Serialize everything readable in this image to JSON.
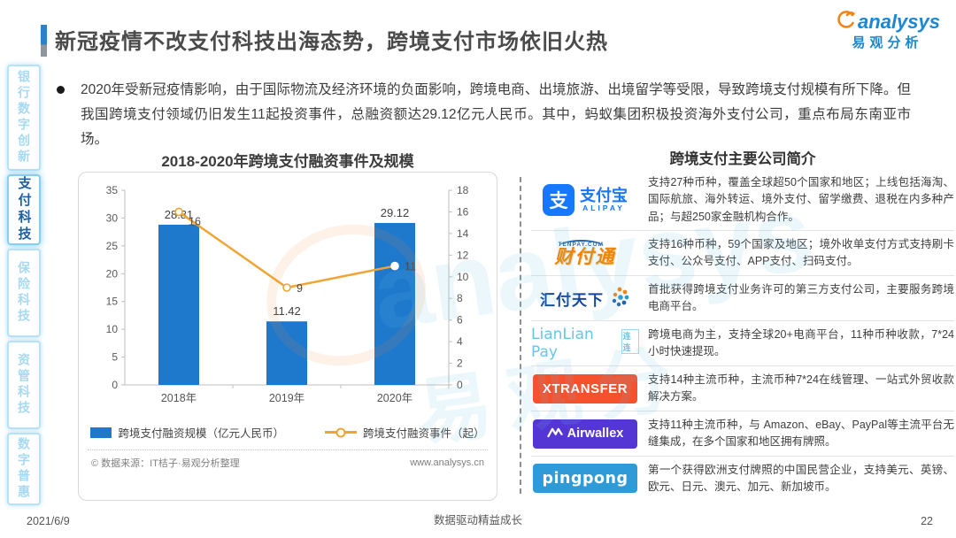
{
  "header": {
    "title": "新冠疫情不改支付科技出海态势，跨境支付市场依旧火热",
    "brand": {
      "name": "analysys",
      "cn": "易观分析"
    }
  },
  "sidebar": {
    "items": [
      {
        "label": "银行数字创新",
        "active": false
      },
      {
        "label": "支付科技",
        "active": true
      },
      {
        "label": "保险科技",
        "active": false
      },
      {
        "label": "资管科技",
        "active": false
      },
      {
        "label": "数字普惠",
        "active": false
      }
    ]
  },
  "summary": {
    "text": "2020年受新冠疫情影响，由于国际物流及经济环境的负面影响，跨境电商、出境旅游、出境留学等受限，导致跨境支付规模有所下降。但我国跨境支付领域仍旧发生11起投资事件，总融资额达29.12亿元人民币。其中，蚂蚁集团积极投资海外支付公司，重点布局东南亚市场。"
  },
  "chart_data": {
    "type": "bar",
    "title": "2018-2020年跨境支付融资事件及规模",
    "categories": [
      "2018年",
      "2019年",
      "2020年"
    ],
    "series": [
      {
        "name": "跨境支付融资规模（亿元人民币）",
        "type": "bar",
        "axis": "left",
        "values": [
          28.81,
          11.42,
          29.12
        ],
        "color": "#1e78cc"
      },
      {
        "name": "跨境支付融资事件（起）",
        "type": "line",
        "axis": "right",
        "values": [
          16,
          9,
          11
        ],
        "color": "#f0a432"
      }
    ],
    "left_axis": {
      "min": 0,
      "max": 35,
      "step": 5
    },
    "right_axis": {
      "min": 0,
      "max": 18,
      "step": 2
    },
    "legend_position": "bottom",
    "grid": false,
    "source_left": "© 数据来源：IT桔子·易观分析整理",
    "source_right": "www.analysys.cn"
  },
  "companies": {
    "title": "跨境支付主要公司简介",
    "rows": [
      {
        "name": "支付宝",
        "logo": {
          "badge": "支",
          "text": "支付宝",
          "sub": "ALIPAY",
          "color": "#1677ff"
        },
        "desc": "支持27种币种，覆盖全球超50个国家和地区；上线包括海淘、国际航旅、海外转运、境外支付、留学缴费、退税在内多种产品；与超250家金融机构合作。"
      },
      {
        "name": "财付通",
        "logo": {
          "text": "财付通",
          "sub": "TENPAY.COM",
          "color": "#f08300"
        },
        "desc": "支持16种币种，59个国家及地区；境外收单支付方式支持刷卡支付、公众号支付、APP支付、扫码支付。"
      },
      {
        "name": "汇付天下",
        "logo": {
          "text": "汇付天下",
          "color": "#14459c"
        },
        "desc": "首批获得跨境支付业务许可的第三方支付公司，主要服务跨境电商平台。"
      },
      {
        "name": "LianLian Pay",
        "logo": {
          "text": "LianLian Pay",
          "sub": "连连",
          "color": "#66c5ea"
        },
        "desc": "跨境电商为主，支持全球20+电商平台，11种币种收款，7*24 小时快速提现。"
      },
      {
        "name": "XTRANSFER",
        "logo": {
          "text": "XTRANSFER",
          "color": "#f4512c"
        },
        "desc": "支持14种主流币种，主流币种7*24在线管理、一站式外贸收款解决方案。"
      },
      {
        "name": "Airwallex",
        "logo": {
          "text": "Airwallex",
          "color": "#5436d4"
        },
        "desc": "支持11种主流币种，与 Amazon、eBay、PayPal等主流平台无缝集成，在多个国家和地区拥有牌照。"
      },
      {
        "name": "pingpong",
        "logo": {
          "text": "pingpong",
          "color": "#2f9ad8"
        },
        "desc": "第一个获得欧洲支付牌照的中国民营企业，支持美元、英镑、欧元、日元、澳元、加元、新加坡币。"
      }
    ]
  },
  "footer": {
    "date": "2021/6/9",
    "center": "数据驱动精益成长",
    "page": "22"
  }
}
